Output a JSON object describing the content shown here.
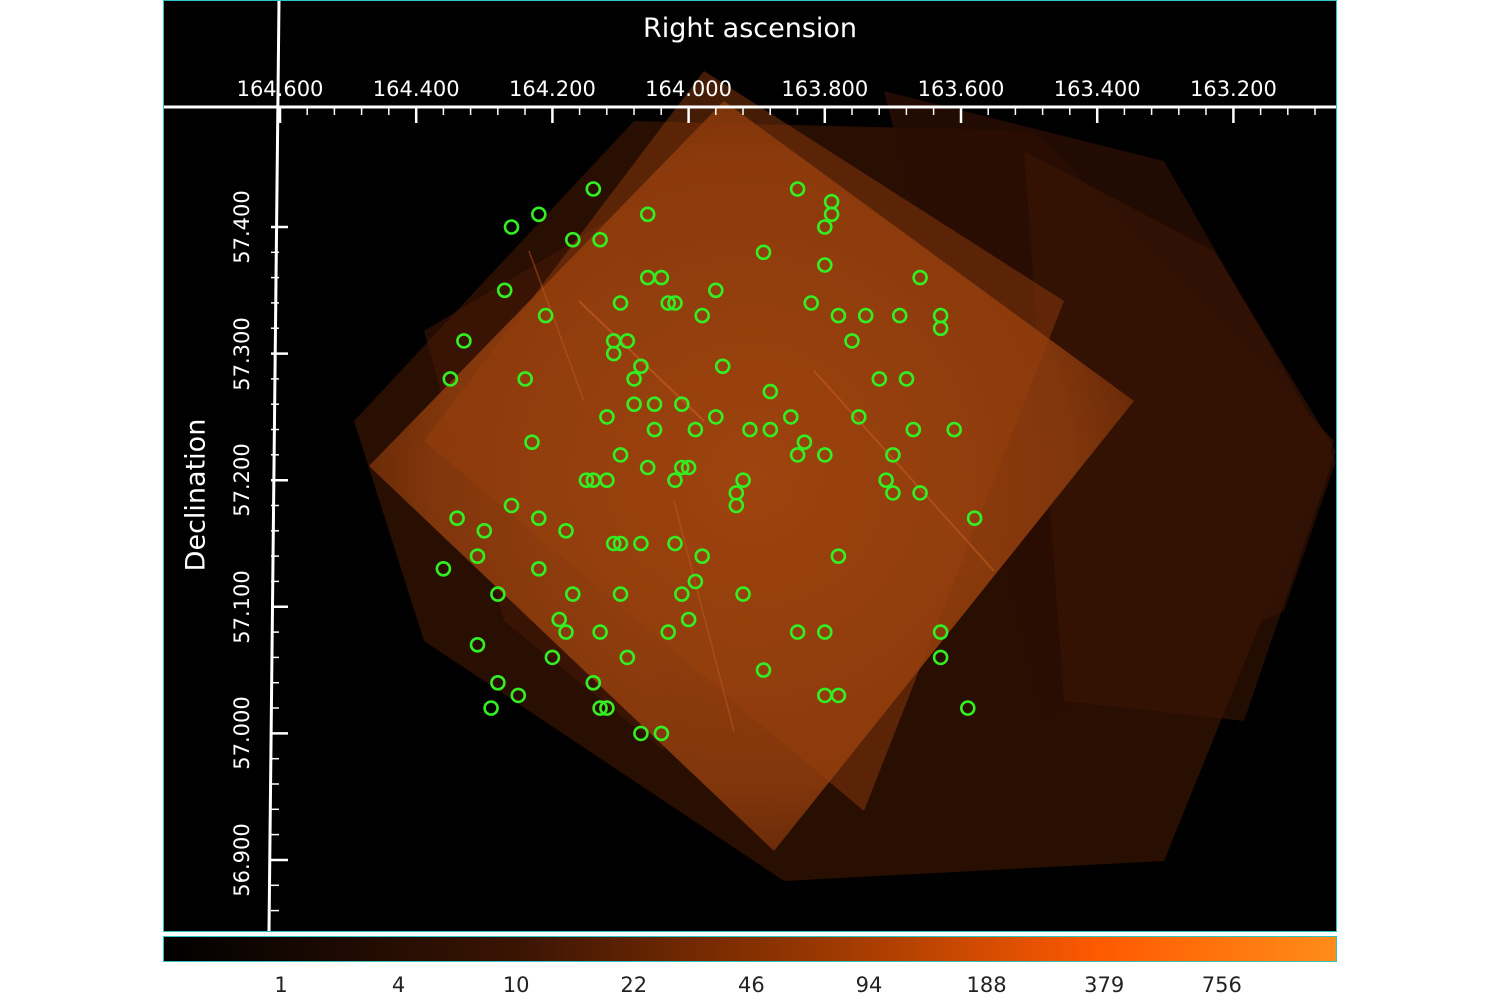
{
  "viewer": {
    "ra_axis_title": "Right ascension",
    "dec_axis_title": "Declination",
    "ra_ticks": [
      "164.600",
      "164.400",
      "164.200",
      "164.000",
      "163.800",
      "163.600",
      "163.400",
      "163.200"
    ],
    "dec_ticks": [
      "57.400",
      "57.300",
      "57.200",
      "57.100",
      "57.000",
      "56.900"
    ],
    "region_color": "#33ee22",
    "region_shape": "circle",
    "sources": [
      [
        164.14,
        57.43
      ],
      [
        164.22,
        57.41
      ],
      [
        164.13,
        57.39
      ],
      [
        164.17,
        57.39
      ],
      [
        164.26,
        57.4
      ],
      [
        164.06,
        57.41
      ],
      [
        163.84,
        57.43
      ],
      [
        163.79,
        57.42
      ],
      [
        163.79,
        57.41
      ],
      [
        163.8,
        57.4
      ],
      [
        163.89,
        57.38
      ],
      [
        163.8,
        57.37
      ],
      [
        164.06,
        57.36
      ],
      [
        164.04,
        57.36
      ],
      [
        163.96,
        57.35
      ],
      [
        163.66,
        57.36
      ],
      [
        164.1,
        57.34
      ],
      [
        164.27,
        57.35
      ],
      [
        164.03,
        57.34
      ],
      [
        164.02,
        57.34
      ],
      [
        163.98,
        57.33
      ],
      [
        163.82,
        57.34
      ],
      [
        164.33,
        57.31
      ],
      [
        164.21,
        57.33
      ],
      [
        164.11,
        57.31
      ],
      [
        164.09,
        57.31
      ],
      [
        163.78,
        57.33
      ],
      [
        163.74,
        57.33
      ],
      [
        163.69,
        57.33
      ],
      [
        163.63,
        57.33
      ],
      [
        163.63,
        57.32
      ],
      [
        164.11,
        57.3
      ],
      [
        163.76,
        57.31
      ],
      [
        164.07,
        57.29
      ],
      [
        164.08,
        57.28
      ],
      [
        163.95,
        57.29
      ],
      [
        164.35,
        57.28
      ],
      [
        164.24,
        57.28
      ],
      [
        163.72,
        57.28
      ],
      [
        163.68,
        57.28
      ],
      [
        164.05,
        57.26
      ],
      [
        164.08,
        57.26
      ],
      [
        164.01,
        57.26
      ],
      [
        163.88,
        57.27
      ],
      [
        163.96,
        57.25
      ],
      [
        164.05,
        57.24
      ],
      [
        164.12,
        57.25
      ],
      [
        163.85,
        57.25
      ],
      [
        163.75,
        57.25
      ],
      [
        163.99,
        57.24
      ],
      [
        163.91,
        57.24
      ],
      [
        163.88,
        57.24
      ],
      [
        163.67,
        57.24
      ],
      [
        163.61,
        57.24
      ],
      [
        164.23,
        57.23
      ],
      [
        163.83,
        57.23
      ],
      [
        164.1,
        57.22
      ],
      [
        164.0,
        57.21
      ],
      [
        163.84,
        57.22
      ],
      [
        163.8,
        57.22
      ],
      [
        163.7,
        57.22
      ],
      [
        164.14,
        57.2
      ],
      [
        164.06,
        57.21
      ],
      [
        164.01,
        57.21
      ],
      [
        163.92,
        57.2
      ],
      [
        164.15,
        57.2
      ],
      [
        164.12,
        57.2
      ],
      [
        164.02,
        57.2
      ],
      [
        163.71,
        57.2
      ],
      [
        163.7,
        57.19
      ],
      [
        163.66,
        57.19
      ],
      [
        163.93,
        57.19
      ],
      [
        163.93,
        57.18
      ],
      [
        164.26,
        57.18
      ],
      [
        164.22,
        57.17
      ],
      [
        163.58,
        57.17
      ],
      [
        164.34,
        57.17
      ],
      [
        164.3,
        57.16
      ],
      [
        164.18,
        57.16
      ],
      [
        164.11,
        57.15
      ],
      [
        164.1,
        57.15
      ],
      [
        164.07,
        57.15
      ],
      [
        164.02,
        57.15
      ],
      [
        163.98,
        57.14
      ],
      [
        163.78,
        57.14
      ],
      [
        164.31,
        57.14
      ],
      [
        164.36,
        57.13
      ],
      [
        164.22,
        57.13
      ],
      [
        164.28,
        57.11
      ],
      [
        164.17,
        57.11
      ],
      [
        164.1,
        57.11
      ],
      [
        163.99,
        57.12
      ],
      [
        164.01,
        57.11
      ],
      [
        163.92,
        57.11
      ],
      [
        164.19,
        57.09
      ],
      [
        164.31,
        57.07
      ],
      [
        164.0,
        57.09
      ],
      [
        164.18,
        57.08
      ],
      [
        164.13,
        57.08
      ],
      [
        164.03,
        57.08
      ],
      [
        163.84,
        57.08
      ],
      [
        163.8,
        57.08
      ],
      [
        163.63,
        57.08
      ],
      [
        164.09,
        57.06
      ],
      [
        164.2,
        57.06
      ],
      [
        163.63,
        57.06
      ],
      [
        163.89,
        57.05
      ],
      [
        164.14,
        57.04
      ],
      [
        164.28,
        57.04
      ],
      [
        164.25,
        57.03
      ],
      [
        164.29,
        57.02
      ],
      [
        163.8,
        57.03
      ],
      [
        163.78,
        57.03
      ],
      [
        164.13,
        57.02
      ],
      [
        164.12,
        57.02
      ],
      [
        163.59,
        57.02
      ],
      [
        164.07,
        57.0
      ],
      [
        164.04,
        57.0
      ]
    ]
  },
  "colorbar": {
    "labels": [
      "1",
      "4",
      "10",
      "22",
      "46",
      "94",
      "188",
      "379",
      "756"
    ],
    "color_low": "#000000",
    "color_mid": "#b04000",
    "color_high": "#ff8c1a"
  }
}
